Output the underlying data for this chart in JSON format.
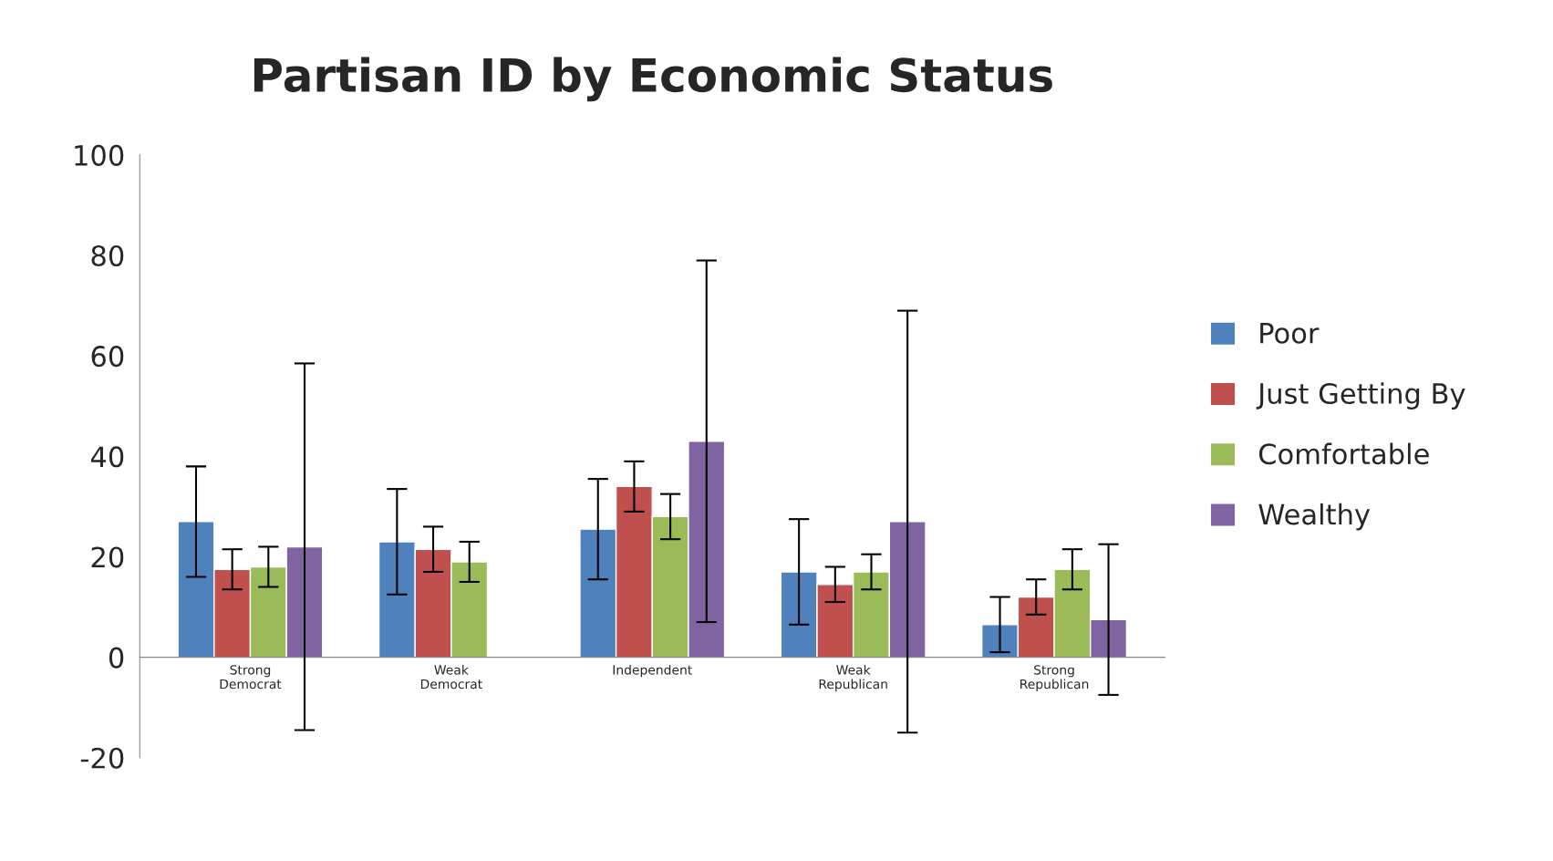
{
  "chart_data": {
    "type": "bar",
    "title": "Partisan ID by Economic Status",
    "categories": [
      "Strong\nDemocrat",
      "Weak\nDemocrat",
      "Independent",
      "Weak\nRepublican",
      "Strong\nRepublican"
    ],
    "series": [
      {
        "name": "Poor",
        "color": "#4f81bd",
        "values": [
          27,
          23,
          25.5,
          17,
          6.5
        ],
        "errors": [
          11,
          10.5,
          10,
          10.5,
          5.5
        ]
      },
      {
        "name": "Just Getting By",
        "color": "#c0504d",
        "values": [
          17.5,
          21.5,
          34,
          14.5,
          12
        ],
        "errors": [
          4,
          4.5,
          5,
          3.5,
          3.5
        ]
      },
      {
        "name": "Comfortable",
        "color": "#9bbb59",
        "values": [
          18,
          19,
          28,
          17,
          17.5
        ],
        "errors": [
          4,
          4,
          4.5,
          3.5,
          4
        ]
      },
      {
        "name": "Wealthy",
        "color": "#8064a2",
        "values": [
          22,
          null,
          43,
          27,
          7.5
        ],
        "errors": [
          36.5,
          null,
          36,
          42,
          15
        ]
      }
    ],
    "ylim": [
      -20,
      100
    ],
    "yticks": [
      -20,
      0,
      20,
      40,
      60,
      80,
      100
    ],
    "grid": false,
    "legend": "right"
  }
}
